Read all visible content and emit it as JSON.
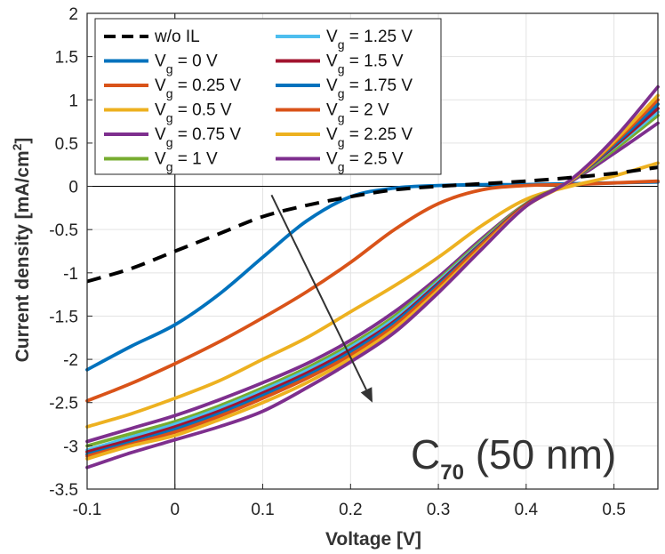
{
  "chart_data": {
    "type": "line",
    "xlabel": "Voltage [V]",
    "ylabel": "Current density [mA/cm",
    "ylabel_sup": "2",
    "ylabel_suffix": "]",
    "xlim": [
      -0.1,
      0.55
    ],
    "ylim": [
      -3.5,
      2
    ],
    "xticks": [
      -0.1,
      0,
      0.1,
      0.2,
      0.3,
      0.4,
      0.5
    ],
    "xtick_labels": [
      "-0.1",
      "0",
      "0.1",
      "0.2",
      "0.3",
      "0.4",
      "0.5"
    ],
    "yticks": [
      -3.5,
      -3,
      -2.5,
      -2,
      -1.5,
      -1,
      -0.5,
      0,
      0.5,
      1,
      1.5,
      2
    ],
    "ytick_labels": [
      "-3.5",
      "-3",
      "-2.5",
      "-2",
      "-1.5",
      "-1",
      "-0.5",
      "0",
      "0.5",
      "1",
      "1.5",
      "2"
    ],
    "grid": true,
    "legend_position": "top-left",
    "annotation": {
      "main": "C",
      "sub": "70",
      "rest": " (50 nm)"
    },
    "arrow": {
      "from": [
        0.11,
        -0.1
      ],
      "to": [
        0.225,
        -2.5
      ],
      "meaning": "increasing Vg"
    },
    "x": [
      -0.1,
      -0.05,
      0,
      0.05,
      0.1,
      0.15,
      0.2,
      0.25,
      0.3,
      0.35,
      0.4,
      0.45,
      0.5,
      0.55
    ],
    "series": [
      {
        "name": "w/o IL",
        "label_main": "w/o IL",
        "label_sub": "",
        "label_rest": "",
        "color": "#000000",
        "dash": true,
        "values": [
          -1.1,
          -0.95,
          -0.75,
          -0.55,
          -0.35,
          -0.22,
          -0.12,
          -0.04,
          0.0,
          0.03,
          0.06,
          0.1,
          0.15,
          0.22
        ]
      },
      {
        "name": "Vg = 0 V",
        "label_main": "V",
        "label_sub": "g",
        "label_rest": " = 0 V",
        "color": "#0072BD",
        "dash": false,
        "values": [
          -2.12,
          -1.85,
          -1.6,
          -1.25,
          -0.82,
          -0.4,
          -0.12,
          -0.02,
          0.01,
          0.02,
          0.02,
          0.03,
          0.04,
          0.05
        ]
      },
      {
        "name": "Vg = 0.25 V",
        "label_main": "V",
        "label_sub": "g",
        "label_rest": " = 0.25 V",
        "color": "#D95319",
        "dash": false,
        "values": [
          -2.48,
          -2.28,
          -2.05,
          -1.8,
          -1.52,
          -1.22,
          -0.88,
          -0.5,
          -0.2,
          -0.04,
          0.01,
          0.02,
          0.04,
          0.06
        ]
      },
      {
        "name": "Vg = 0.5 V",
        "label_main": "V",
        "label_sub": "g",
        "label_rest": " = 0.5 V",
        "color": "#EDB120",
        "dash": false,
        "values": [
          -2.78,
          -2.63,
          -2.45,
          -2.25,
          -2.0,
          -1.75,
          -1.45,
          -1.15,
          -0.82,
          -0.45,
          -0.15,
          0.0,
          0.12,
          0.27
        ]
      },
      {
        "name": "Vg = 0.75 V",
        "label_main": "V",
        "label_sub": "g",
        "label_rest": " = 0.75 V",
        "color": "#7E2F8E",
        "dash": false,
        "values": [
          -2.95,
          -2.8,
          -2.65,
          -2.47,
          -2.27,
          -2.05,
          -1.78,
          -1.45,
          -1.05,
          -0.6,
          -0.2,
          0.05,
          0.38,
          0.73
        ]
      },
      {
        "name": "Vg = 1 V",
        "label_main": "V",
        "label_sub": "g",
        "label_rest": " = 1 V",
        "color": "#77AC30",
        "dash": false,
        "values": [
          -3.0,
          -2.86,
          -2.72,
          -2.54,
          -2.33,
          -2.1,
          -1.83,
          -1.5,
          -1.08,
          -0.62,
          -0.2,
          0.06,
          0.42,
          0.82
        ]
      },
      {
        "name": "Vg = 1.25 V",
        "label_main": "V",
        "label_sub": "g",
        "label_rest": " = 1.25 V",
        "color": "#4DBEEE",
        "dash": false,
        "values": [
          -3.05,
          -2.9,
          -2.75,
          -2.57,
          -2.36,
          -2.13,
          -1.86,
          -1.53,
          -1.1,
          -0.64,
          -0.21,
          0.06,
          0.45,
          0.86
        ]
      },
      {
        "name": "Vg = 1.5 V",
        "label_main": "V",
        "label_sub": "g",
        "label_rest": " = 1.5 V",
        "color": "#A2142F",
        "dash": false,
        "values": [
          -3.07,
          -2.93,
          -2.78,
          -2.6,
          -2.39,
          -2.16,
          -1.89,
          -1.56,
          -1.12,
          -0.65,
          -0.21,
          0.06,
          0.46,
          0.9
        ]
      },
      {
        "name": "Vg = 1.75 V",
        "label_main": "V",
        "label_sub": "g",
        "label_rest": " = 1.75 V",
        "color": "#0072BD",
        "dash": false,
        "values": [
          -3.1,
          -2.96,
          -2.81,
          -2.63,
          -2.42,
          -2.19,
          -1.92,
          -1.58,
          -1.14,
          -0.66,
          -0.22,
          0.06,
          0.48,
          0.95
        ]
      },
      {
        "name": "Vg = 2 V",
        "label_main": "V",
        "label_sub": "g",
        "label_rest": " = 2 V",
        "color": "#D95319",
        "dash": false,
        "values": [
          -3.12,
          -2.98,
          -2.84,
          -2.66,
          -2.45,
          -2.22,
          -1.95,
          -1.61,
          -1.16,
          -0.67,
          -0.22,
          0.06,
          0.5,
          1.0
        ]
      },
      {
        "name": "Vg = 2.25 V",
        "label_main": "V",
        "label_sub": "g",
        "label_rest": " = 2.25 V",
        "color": "#EDB120",
        "dash": false,
        "values": [
          -3.15,
          -3.0,
          -2.88,
          -2.7,
          -2.5,
          -2.27,
          -1.99,
          -1.65,
          -1.2,
          -0.7,
          -0.23,
          0.06,
          0.52,
          1.05
        ]
      },
      {
        "name": "Vg = 2.5 V",
        "label_main": "V",
        "label_sub": "g",
        "label_rest": " = 2.5 V",
        "color": "#7E2F8E",
        "dash": false,
        "values": [
          -3.25,
          -3.08,
          -2.93,
          -2.78,
          -2.6,
          -2.33,
          -2.03,
          -1.69,
          -1.23,
          -0.72,
          -0.23,
          0.07,
          0.55,
          1.15
        ]
      }
    ]
  }
}
